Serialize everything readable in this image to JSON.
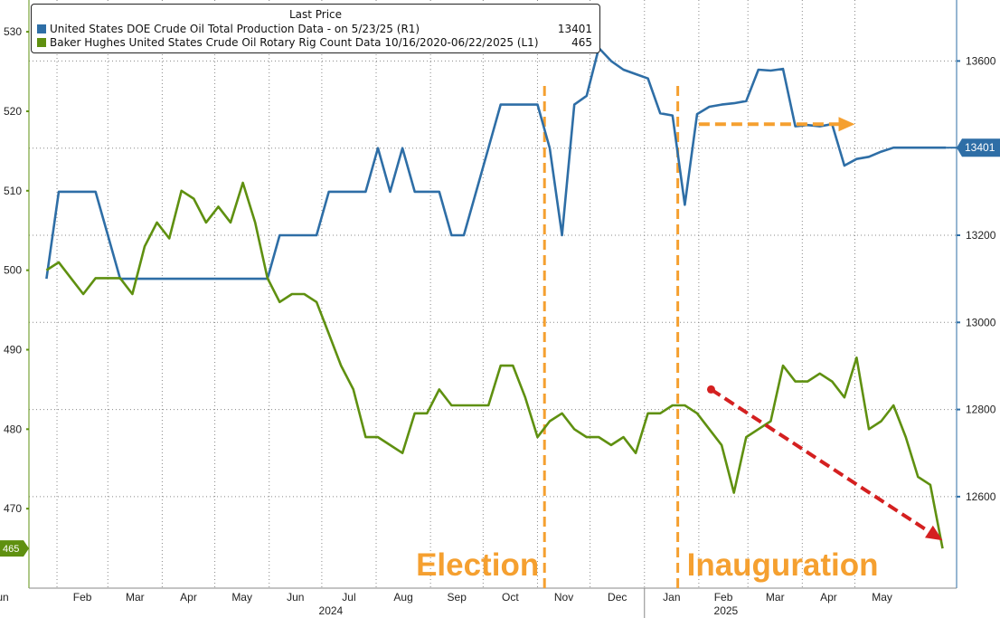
{
  "chart_data": {
    "type": "line",
    "legend": {
      "header": "Last Price",
      "entries": [
        {
          "label": "United States DOE Crude Oil Total Production Data -  on 5/23/25  (R1)",
          "value": "13401",
          "color": "#2e6ea6"
        },
        {
          "label": "Baker Hughes United States Crude Oil Rotary Rig Count Data 10/16/2020-06/22/2025  (L1)",
          "value": "465",
          "color": "#5f9010"
        }
      ]
    },
    "x_axis": {
      "months": [
        "Feb",
        "Mar",
        "Apr",
        "May",
        "Jun",
        "Jul",
        "Aug",
        "Sep",
        "Oct",
        "Nov",
        "Dec",
        "Jan",
        "Feb",
        "Mar",
        "Apr",
        "May",
        "Jun"
      ],
      "years": [
        "2024",
        "2025"
      ]
    },
    "y_left": {
      "ticks": [
        470,
        480,
        490,
        500,
        510,
        520,
        530
      ],
      "range": [
        460,
        534
      ]
    },
    "y_right": {
      "ticks": [
        12600,
        12800,
        13000,
        13200,
        13400,
        13600
      ],
      "range": [
        12390,
        13740
      ]
    },
    "series": [
      {
        "name": "United States DOE Crude Oil Total Production Data",
        "axis": "right",
        "color": "#2e6ea6",
        "last_label": "13401",
        "points": [
          [
            "2024-01-26",
            13100
          ],
          [
            "2024-02-02",
            13300
          ],
          [
            "2024-02-09",
            13300
          ],
          [
            "2024-02-16",
            13300
          ],
          [
            "2024-02-23",
            13300
          ],
          [
            "2024-03-01",
            13200
          ],
          [
            "2024-03-08",
            13100
          ],
          [
            "2024-03-15",
            13100
          ],
          [
            "2024-03-22",
            13100
          ],
          [
            "2024-03-29",
            13100
          ],
          [
            "2024-04-05",
            13100
          ],
          [
            "2024-04-12",
            13100
          ],
          [
            "2024-04-19",
            13100
          ],
          [
            "2024-04-26",
            13100
          ],
          [
            "2024-05-03",
            13100
          ],
          [
            "2024-05-10",
            13100
          ],
          [
            "2024-05-17",
            13100
          ],
          [
            "2024-05-24",
            13100
          ],
          [
            "2024-05-31",
            13100
          ],
          [
            "2024-06-07",
            13200
          ],
          [
            "2024-06-14",
            13200
          ],
          [
            "2024-06-21",
            13200
          ],
          [
            "2024-06-28",
            13200
          ],
          [
            "2024-07-05",
            13300
          ],
          [
            "2024-07-12",
            13300
          ],
          [
            "2024-07-19",
            13300
          ],
          [
            "2024-07-26",
            13300
          ],
          [
            "2024-08-02",
            13400
          ],
          [
            "2024-08-09",
            13300
          ],
          [
            "2024-08-16",
            13400
          ],
          [
            "2024-08-23",
            13300
          ],
          [
            "2024-08-30",
            13300
          ],
          [
            "2024-09-06",
            13300
          ],
          [
            "2024-09-13",
            13200
          ],
          [
            "2024-09-20",
            13200
          ],
          [
            "2024-09-27",
            13300
          ],
          [
            "2024-10-04",
            13400
          ],
          [
            "2024-10-11",
            13500
          ],
          [
            "2024-10-18",
            13500
          ],
          [
            "2024-10-25",
            13500
          ],
          [
            "2024-11-01",
            13500
          ],
          [
            "2024-11-08",
            13400
          ],
          [
            "2024-11-15",
            13200
          ],
          [
            "2024-11-22",
            13500
          ],
          [
            "2024-11-29",
            13520
          ],
          [
            "2024-12-06",
            13630
          ],
          [
            "2024-12-13",
            13600
          ],
          [
            "2024-12-20",
            13580
          ],
          [
            "2024-12-27",
            13570
          ],
          [
            "2025-01-03",
            13560
          ],
          [
            "2025-01-10",
            13480
          ],
          [
            "2025-01-17",
            13475
          ],
          [
            "2025-01-24",
            13270
          ],
          [
            "2025-01-31",
            13478
          ],
          [
            "2025-02-07",
            13495
          ],
          [
            "2025-02-14",
            13500
          ],
          [
            "2025-02-21",
            13503
          ],
          [
            "2025-02-28",
            13508
          ],
          [
            "2025-03-07",
            13580
          ],
          [
            "2025-03-14",
            13578
          ],
          [
            "2025-03-21",
            13582
          ],
          [
            "2025-03-28",
            13450
          ],
          [
            "2025-04-04",
            13453
          ],
          [
            "2025-04-11",
            13450
          ],
          [
            "2025-04-18",
            13455
          ],
          [
            "2025-04-25",
            13360
          ],
          [
            "2025-05-02",
            13375
          ],
          [
            "2025-05-09",
            13380
          ],
          [
            "2025-05-16",
            13392
          ],
          [
            "2025-05-23",
            13401
          ],
          [
            "2025-06-22",
            13401
          ]
        ]
      },
      {
        "name": "Baker Hughes United States Crude Oil Rotary Rig Count Data",
        "axis": "left",
        "color": "#5f9010",
        "last_label": "465",
        "points": [
          [
            "2024-01-26",
            500
          ],
          [
            "2024-02-02",
            501
          ],
          [
            "2024-02-09",
            499
          ],
          [
            "2024-02-16",
            497
          ],
          [
            "2024-02-23",
            499
          ],
          [
            "2024-03-01",
            499
          ],
          [
            "2024-03-08",
            499
          ],
          [
            "2024-03-15",
            497
          ],
          [
            "2024-03-22",
            503
          ],
          [
            "2024-03-29",
            506
          ],
          [
            "2024-04-05",
            504
          ],
          [
            "2024-04-12",
            510
          ],
          [
            "2024-04-19",
            509
          ],
          [
            "2024-04-26",
            506
          ],
          [
            "2024-05-03",
            508
          ],
          [
            "2024-05-10",
            506
          ],
          [
            "2024-05-17",
            511
          ],
          [
            "2024-05-24",
            506
          ],
          [
            "2024-05-31",
            499
          ],
          [
            "2024-06-07",
            496
          ],
          [
            "2024-06-14",
            497
          ],
          [
            "2024-06-21",
            497
          ],
          [
            "2024-06-28",
            496
          ],
          [
            "2024-07-05",
            492
          ],
          [
            "2024-07-12",
            488
          ],
          [
            "2024-07-19",
            485
          ],
          [
            "2024-07-26",
            479
          ],
          [
            "2024-08-02",
            479
          ],
          [
            "2024-08-09",
            478
          ],
          [
            "2024-08-16",
            477
          ],
          [
            "2024-08-23",
            482
          ],
          [
            "2024-08-30",
            482
          ],
          [
            "2024-09-06",
            485
          ],
          [
            "2024-09-13",
            483
          ],
          [
            "2024-09-20",
            483
          ],
          [
            "2024-09-27",
            483
          ],
          [
            "2024-10-04",
            483
          ],
          [
            "2024-10-11",
            488
          ],
          [
            "2024-10-18",
            488
          ],
          [
            "2024-10-25",
            484
          ],
          [
            "2024-11-01",
            479
          ],
          [
            "2024-11-08",
            481
          ],
          [
            "2024-11-15",
            482
          ],
          [
            "2024-11-22",
            480
          ],
          [
            "2024-11-29",
            479
          ],
          [
            "2024-12-06",
            479
          ],
          [
            "2024-12-13",
            478
          ],
          [
            "2024-12-20",
            479
          ],
          [
            "2024-12-27",
            477
          ],
          [
            "2025-01-03",
            482
          ],
          [
            "2025-01-10",
            482
          ],
          [
            "2025-01-17",
            483
          ],
          [
            "2025-01-24",
            483
          ],
          [
            "2025-01-31",
            482
          ],
          [
            "2025-02-07",
            480
          ],
          [
            "2025-02-14",
            478
          ],
          [
            "2025-02-21",
            472
          ],
          [
            "2025-02-28",
            479
          ],
          [
            "2025-03-07",
            480
          ],
          [
            "2025-03-14",
            481
          ],
          [
            "2025-03-21",
            488
          ],
          [
            "2025-03-28",
            486
          ],
          [
            "2025-04-04",
            486
          ],
          [
            "2025-04-11",
            487
          ],
          [
            "2025-04-18",
            486
          ],
          [
            "2025-04-25",
            484
          ],
          [
            "2025-05-02",
            489
          ],
          [
            "2025-05-09",
            480
          ],
          [
            "2025-05-16",
            481
          ],
          [
            "2025-05-23",
            483
          ],
          [
            "2025-05-30",
            479
          ],
          [
            "2025-06-06",
            474
          ],
          [
            "2025-06-13",
            473
          ],
          [
            "2025-06-20",
            465
          ]
        ]
      }
    ],
    "annotations": [
      {
        "text": "Election",
        "date": "2024-11-05",
        "color": "#f5a030"
      },
      {
        "text": "Inauguration",
        "date": "2025-01-20",
        "color": "#f5a030"
      },
      {
        "type": "arrow",
        "color": "#f5a030",
        "axis": "right",
        "from": [
          "2025-02-01",
          13455
        ],
        "to": [
          "2025-05-01",
          13455
        ]
      },
      {
        "type": "arrow",
        "color": "#d42020",
        "axis": "left",
        "from": [
          "2025-02-08",
          485
        ],
        "to": [
          "2025-06-20",
          466
        ]
      }
    ],
    "grid": true
  }
}
